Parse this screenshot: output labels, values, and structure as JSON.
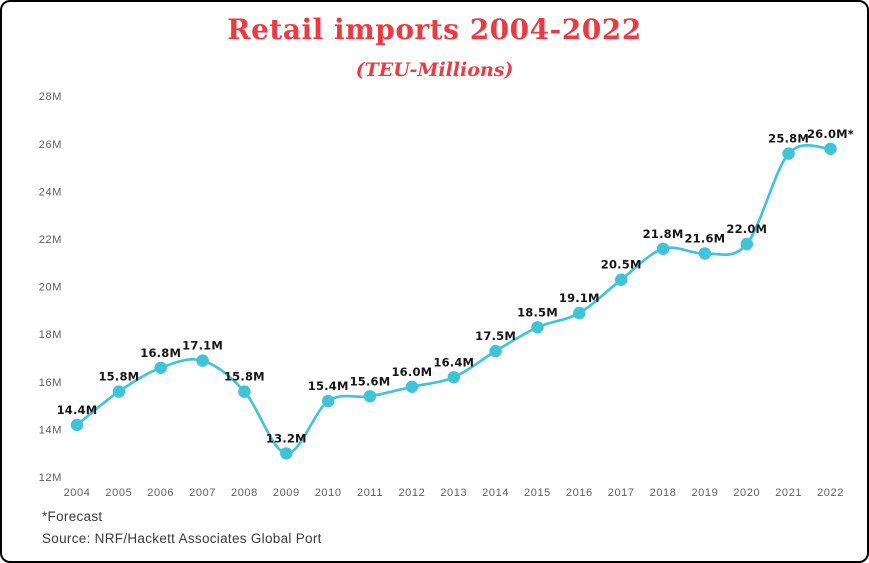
{
  "header": {
    "title": "Retail imports 2004-2022",
    "subtitle": "(TEU-Millions)"
  },
  "footer": {
    "forecast_note": "*Forecast",
    "source": "Source: NRF/Hackett Associates Global Port"
  },
  "colors": {
    "accent_red": "#EA3B43",
    "line_teal": "#3FC3D6",
    "data_label": "#161616",
    "axis_label": "#5E5E5E",
    "footer_text": "#3A3A3A",
    "border": "#000000",
    "background": "#FFFFFF"
  },
  "chart_data": {
    "type": "line",
    "title": "Retail imports 2004-2022",
    "subtitle": "(TEU-Millions)",
    "x": [
      "2004",
      "2005",
      "2006",
      "2007",
      "2008",
      "2009",
      "2010",
      "2011",
      "2012",
      "2013",
      "2014",
      "2015",
      "2016",
      "2017",
      "2018",
      "2019",
      "2020",
      "2021",
      "2022"
    ],
    "values": [
      14.4,
      15.8,
      16.8,
      17.1,
      15.8,
      13.2,
      15.4,
      15.6,
      16.0,
      16.4,
      17.5,
      18.5,
      19.1,
      20.5,
      21.8,
      21.6,
      22.0,
      25.8,
      26.0
    ],
    "point_labels": [
      "14.4M",
      "15.8M",
      "16.8M",
      "17.1M",
      "15.8M",
      "13.2M",
      "15.4M",
      "15.6M",
      "16.0M",
      "16.4M",
      "17.5M",
      "18.5M",
      "19.1M",
      "20.5M",
      "21.8M",
      "21.6M",
      "22.0M",
      "25.8M",
      "26.0M*"
    ],
    "y_ticks": [
      "12M",
      "14M",
      "16M",
      "18M",
      "20M",
      "22M",
      "24M",
      "26M",
      "28M"
    ],
    "y_tick_values": [
      12,
      14,
      16,
      18,
      20,
      22,
      24,
      26,
      28
    ],
    "ylim": [
      12,
      28
    ],
    "xlabel": "",
    "ylabel": "",
    "grid": false,
    "legend": false,
    "smooth": true,
    "marker": "circle",
    "line_color": "#3FC3D6",
    "footnote": "*Forecast",
    "source": "Source: NRF/Hackett Associates Global Port"
  }
}
